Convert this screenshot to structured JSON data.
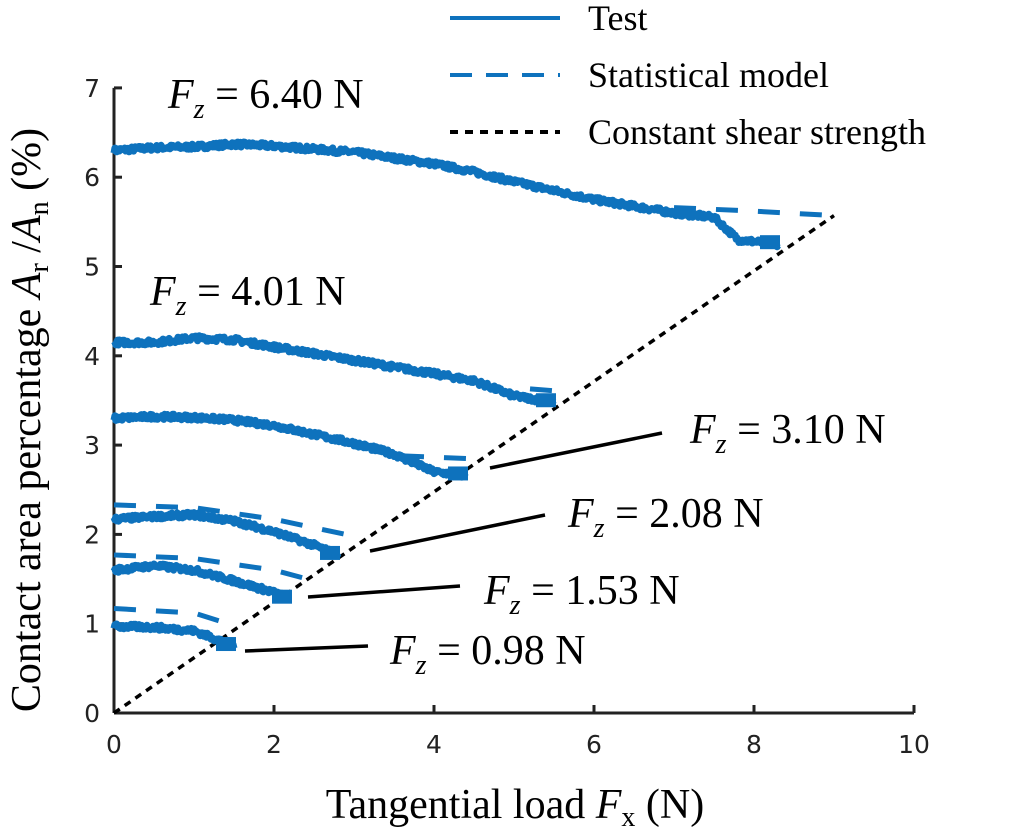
{
  "chart_data": {
    "type": "line",
    "xlabel": "Tangential load F_x (N)",
    "xlabel_parts": {
      "pre": "Tangential load ",
      "var": "F",
      "sub": "x",
      "post": " (N)"
    },
    "ylabel": "Contact area percentage A_r /A_n (%)",
    "ylabel_parts": {
      "pre": "Contact area percentage ",
      "var1": "A",
      "sub1": "r",
      "mid": " /",
      "var2": "A",
      "sub2": "n",
      "post": " (%)"
    },
    "xlim": [
      0,
      10
    ],
    "ylim": [
      0,
      7
    ],
    "xticks": [
      "0",
      "2",
      "4",
      "6",
      "8",
      "10"
    ],
    "yticks": [
      "0",
      "1",
      "2",
      "3",
      "4",
      "5",
      "6",
      "7"
    ],
    "grid": false,
    "legend": {
      "placement": "top-right",
      "entries": [
        "Test",
        "Statistical model",
        "Constant shear strength"
      ]
    },
    "colors": {
      "test": "#0e72bd",
      "model": "#0e72bd",
      "shear": "#000000"
    },
    "constant_shear_strength": {
      "x": [
        0,
        9
      ],
      "y": [
        0,
        5.57
      ]
    },
    "series": [
      {
        "name": "Fz = 6.40 N",
        "label": "= 6.40 N",
        "test": {
          "x": [
            0,
            0.5,
            1.0,
            1.5,
            2.0,
            3.0,
            4.0,
            4.5,
            5.0,
            6.0,
            7.0,
            7.5,
            7.8,
            8.3
          ],
          "y": [
            6.3,
            6.33,
            6.34,
            6.37,
            6.35,
            6.28,
            6.15,
            6.06,
            5.95,
            5.75,
            5.6,
            5.55,
            5.3,
            5.25
          ]
        },
        "model": {
          "x": [
            7.0,
            8.0,
            9.0
          ],
          "y": [
            5.66,
            5.62,
            5.57
          ]
        }
      },
      {
        "name": "Fz = 4.01 N",
        "label": "= 4.01 N",
        "test": {
          "x": [
            0,
            0.5,
            1.0,
            1.5,
            2.0,
            3.0,
            4.0,
            4.5,
            5.0,
            5.5
          ],
          "y": [
            4.15,
            4.15,
            4.2,
            4.18,
            4.1,
            3.95,
            3.8,
            3.72,
            3.55,
            3.48
          ]
        },
        "model": {
          "x": [
            5.2,
            5.6
          ],
          "y": [
            3.63,
            3.6
          ]
        }
      },
      {
        "name": "Fz = 3.10 N",
        "label": "= 3.10 N",
        "test": {
          "x": [
            0,
            0.5,
            1.0,
            1.5,
            2.0,
            2.5,
            3.0,
            3.5,
            4.0,
            4.4
          ],
          "y": [
            3.3,
            3.32,
            3.31,
            3.28,
            3.22,
            3.12,
            3.02,
            2.9,
            2.7,
            2.66
          ]
        },
        "model": {
          "x": [
            3.6,
            4.4
          ],
          "y": [
            2.88,
            2.85
          ]
        }
      },
      {
        "name": "Fz = 2.08 N",
        "label": "= 2.08 N",
        "test": {
          "x": [
            0,
            0.5,
            1.0,
            1.5,
            2.0,
            2.5,
            2.8
          ],
          "y": [
            2.17,
            2.2,
            2.22,
            2.15,
            2.03,
            1.88,
            1.77
          ]
        },
        "model": {
          "x": [
            0,
            1.0,
            2.0,
            3.0
          ],
          "y": [
            2.33,
            2.3,
            2.17,
            1.98
          ]
        }
      },
      {
        "name": "Fz = 1.53 N",
        "label": "= 1.53 N",
        "test": {
          "x": [
            0,
            0.5,
            1.0,
            1.5,
            2.0,
            2.2
          ],
          "y": [
            1.6,
            1.65,
            1.6,
            1.48,
            1.35,
            1.28
          ]
        },
        "model": {
          "x": [
            0,
            1.0,
            2.0,
            2.5
          ],
          "y": [
            1.77,
            1.73,
            1.6,
            1.48
          ]
        }
      },
      {
        "name": "Fz = 0.98 N",
        "label": "= 0.98 N",
        "test": {
          "x": [
            0,
            0.5,
            1.0,
            1.3,
            1.5
          ],
          "y": [
            0.97,
            0.96,
            0.92,
            0.82,
            0.75
          ]
        },
        "model": {
          "x": [
            0,
            1.0,
            1.5
          ],
          "y": [
            1.17,
            1.12,
            0.98
          ]
        }
      }
    ]
  }
}
